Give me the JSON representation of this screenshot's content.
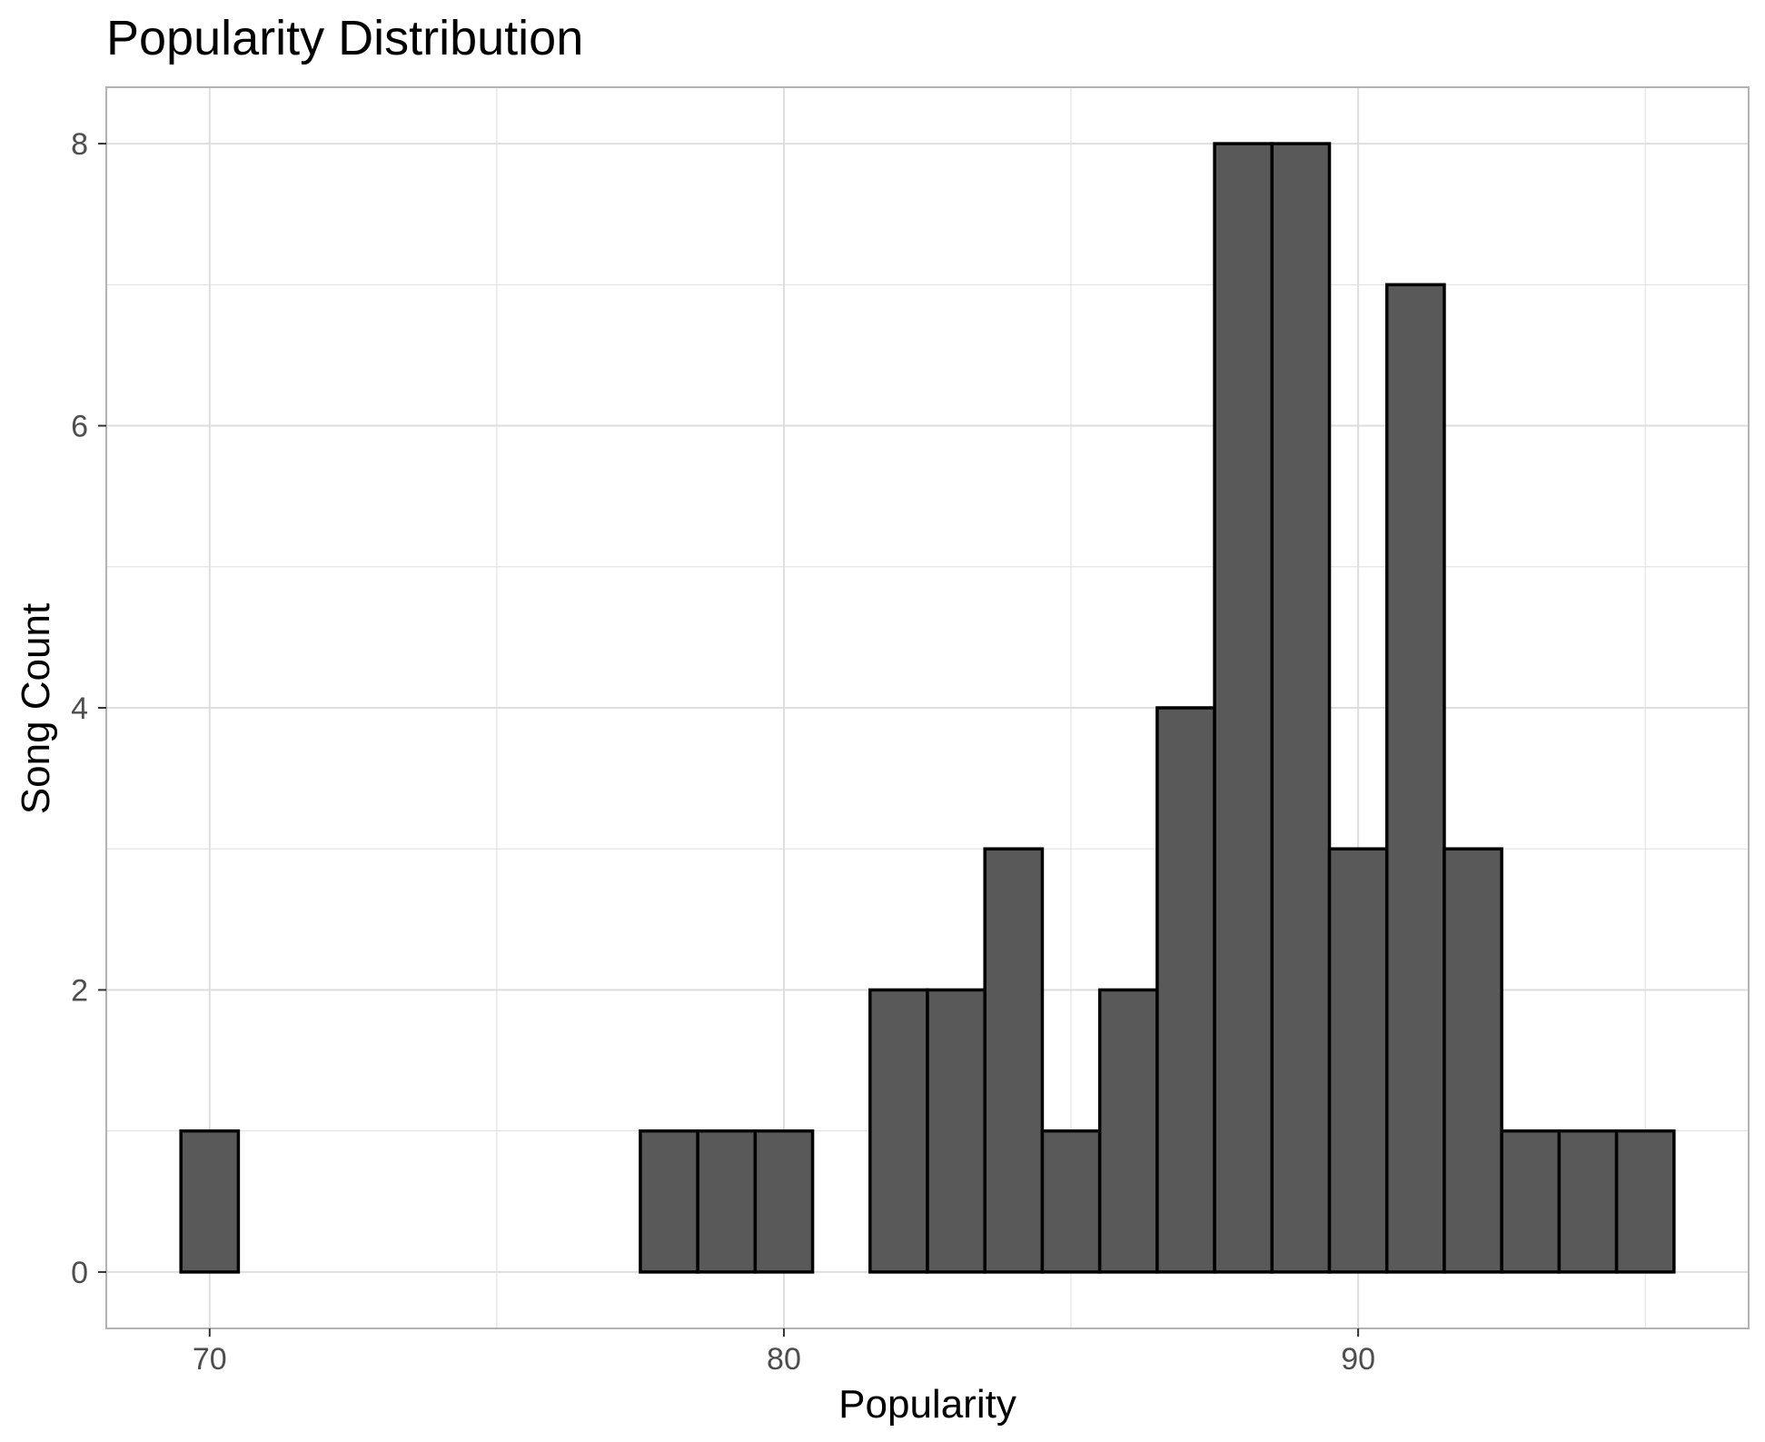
{
  "chart_data": {
    "type": "bar",
    "title": "Popularity Distribution",
    "xlabel": "Popularity",
    "ylabel": "Song Count",
    "bin_width": 1,
    "bins": [
      {
        "x": 70,
        "count": 1
      },
      {
        "x": 71,
        "count": 0
      },
      {
        "x": 72,
        "count": 0
      },
      {
        "x": 73,
        "count": 0
      },
      {
        "x": 74,
        "count": 0
      },
      {
        "x": 75,
        "count": 0
      },
      {
        "x": 76,
        "count": 0
      },
      {
        "x": 77,
        "count": 0
      },
      {
        "x": 78,
        "count": 1
      },
      {
        "x": 79,
        "count": 1
      },
      {
        "x": 80,
        "count": 1
      },
      {
        "x": 81,
        "count": 0
      },
      {
        "x": 82,
        "count": 2
      },
      {
        "x": 83,
        "count": 2
      },
      {
        "x": 84,
        "count": 3
      },
      {
        "x": 85,
        "count": 1
      },
      {
        "x": 86,
        "count": 2
      },
      {
        "x": 87,
        "count": 4
      },
      {
        "x": 88,
        "count": 8
      },
      {
        "x": 89,
        "count": 8
      },
      {
        "x": 90,
        "count": 3
      },
      {
        "x": 91,
        "count": 7
      },
      {
        "x": 92,
        "count": 3
      },
      {
        "x": 93,
        "count": 1
      },
      {
        "x": 94,
        "count": 1
      },
      {
        "x": 95,
        "count": 1
      }
    ],
    "x_ticks": [
      70,
      80,
      90
    ],
    "y_ticks": [
      0,
      2,
      4,
      6,
      8
    ],
    "xlim": [
      68.2,
      96.8
    ],
    "ylim": [
      -0.4,
      8.4
    ],
    "grid": true,
    "colors": {
      "bar_fill": "#595959",
      "bar_stroke": "#000000",
      "grid": "#dedede",
      "panel_border": "#b3b3b3"
    }
  }
}
